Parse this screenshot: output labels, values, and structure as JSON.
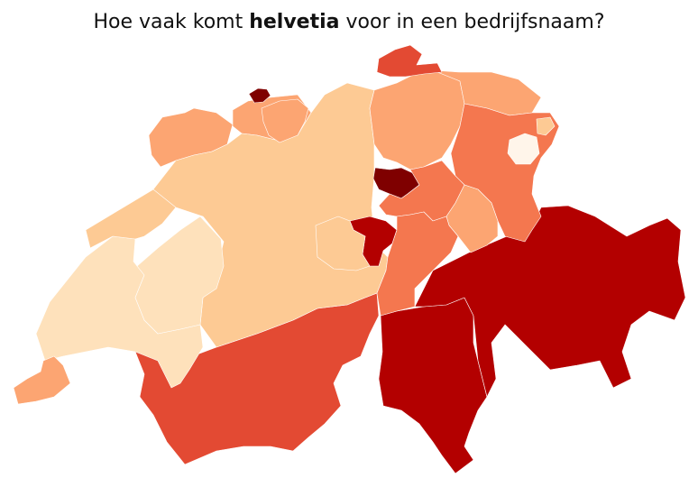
{
  "title": {
    "prefix": "Hoe vaak komt ",
    "emphasis": "helvetia",
    "suffix": " voor in een bedrijfsnaam?"
  },
  "map": {
    "country": "Switzerland",
    "color_scale": "OrRd",
    "regions": [
      {
        "name": "Schaffhausen",
        "color": "#e34a33"
      },
      {
        "name": "Basel-Stadt",
        "color": "#7f0000"
      },
      {
        "name": "Basel-Landschaft",
        "color": "#fca572"
      },
      {
        "name": "Jura",
        "color": "#fca572"
      },
      {
        "name": "Solothurn-Aargau area",
        "color": "#fdca94"
      },
      {
        "name": "Aargau west",
        "color": "#fca572"
      },
      {
        "name": "Bern",
        "color": "#fdca94"
      },
      {
        "name": "Neuchatel",
        "color": "#fdca94"
      },
      {
        "name": "Fribourg",
        "color": "#fee1bb"
      },
      {
        "name": "Vaud",
        "color": "#fca572"
      },
      {
        "name": "Geneva",
        "color": "#e34a33"
      },
      {
        "name": "Valais",
        "color": "#b30000"
      },
      {
        "name": "Ticino",
        "color": "#b30000"
      },
      {
        "name": "Graubuenden",
        "color": "#fdca94"
      },
      {
        "name": "Zurich",
        "color": "#fca572"
      },
      {
        "name": "Thurgau",
        "color": "#fca572"
      },
      {
        "name": "St. Gallen",
        "color": "#f4774f"
      },
      {
        "name": "Appenzell Innerrhoden",
        "color": "#fff5ea"
      },
      {
        "name": "Appenzell Ausserrhoden",
        "color": "#fdca94"
      },
      {
        "name": "Zug",
        "color": "#7f0000"
      },
      {
        "name": "Schwyz",
        "color": "#f4774f"
      },
      {
        "name": "Glarus",
        "color": "#fca572"
      },
      {
        "name": "Nidwalden-Obwalden",
        "color": "#b30000"
      },
      {
        "name": "Lucerne",
        "color": "#fdca94"
      },
      {
        "name": "Uri",
        "color": "#f4774f"
      }
    ]
  }
}
